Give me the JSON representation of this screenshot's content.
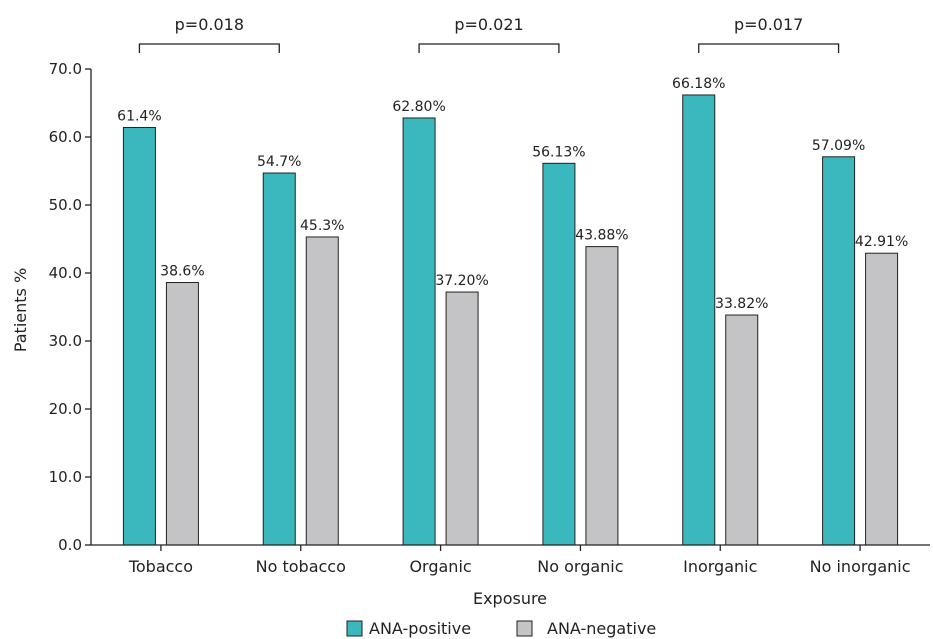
{
  "chart_data": {
    "type": "bar",
    "xlabel": "Exposure",
    "ylabel": "Patients %",
    "ylim": [
      0,
      70
    ],
    "yticks": [
      "0.0",
      "10.0",
      "20.0",
      "30.0",
      "40.0",
      "50.0",
      "60.0",
      "70.0"
    ],
    "categories": [
      "Tobacco",
      "No tobacco",
      "Organic",
      "No organic",
      "Inorganic",
      "No inorganic"
    ],
    "series": [
      {
        "name": "ANA-positive",
        "color": "#3bb8bd",
        "values": [
          61.4,
          54.7,
          62.8,
          56.13,
          66.18,
          57.09
        ],
        "labels": [
          "61.4%",
          "54.7%",
          "62.80%",
          "56.13%",
          "66.18%",
          "57.09%"
        ]
      },
      {
        "name": "ANA-negative",
        "color": "#c4c4c6",
        "values": [
          38.6,
          45.3,
          37.2,
          43.88,
          33.82,
          42.91
        ],
        "labels": [
          "38.6%",
          "45.3%",
          "37.20%",
          "43.88%",
          "33.82%",
          "42.91%"
        ]
      }
    ],
    "comparisons": [
      {
        "label": "p=0.018",
        "from": 0,
        "to": 1
      },
      {
        "label": "p=0.021",
        "from": 2,
        "to": 3
      },
      {
        "label": "p=0.017",
        "from": 4,
        "to": 5
      }
    ],
    "legend": {
      "position": "bottom-center"
    },
    "grid": false
  }
}
